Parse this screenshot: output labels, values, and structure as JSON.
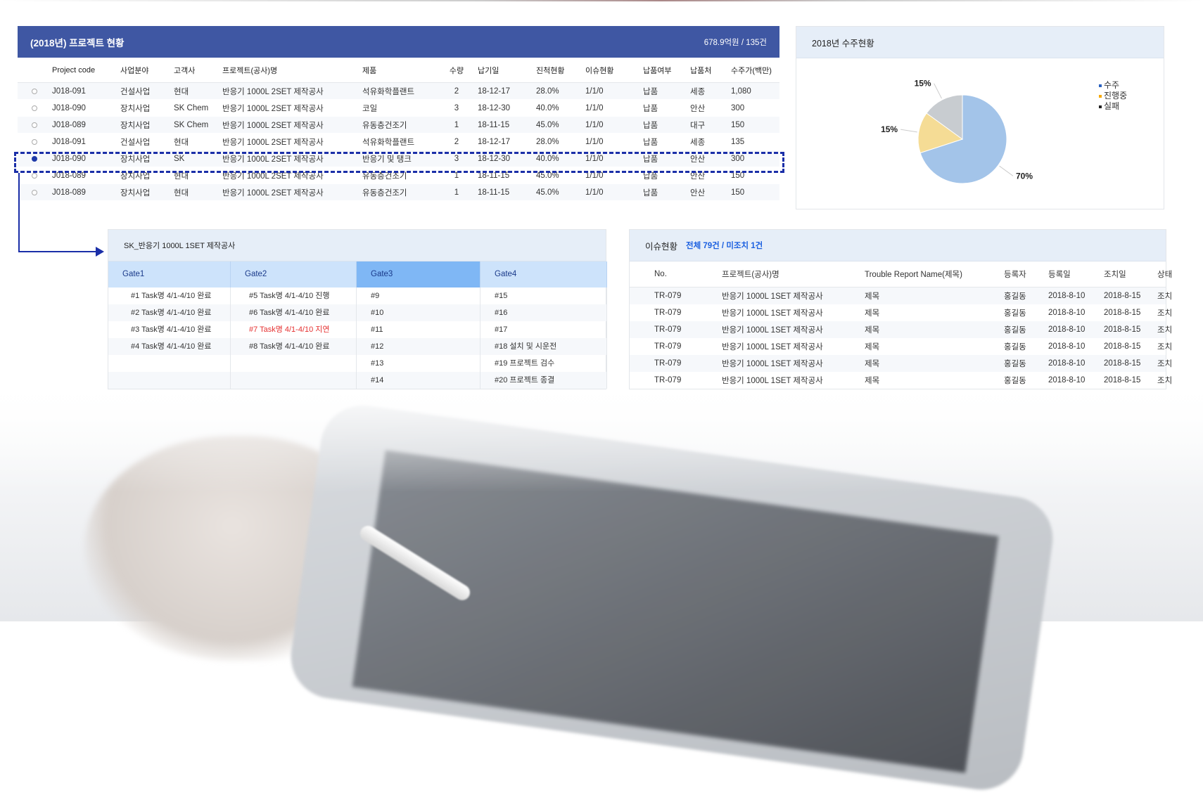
{
  "project_table": {
    "title": "(2018년) 프로젝트 현황",
    "summary": "678.9억원 / 135건",
    "columns": [
      "",
      "Project code",
      "사업분야",
      "고객사",
      "프로젝트(공사)명",
      "제품",
      "수량",
      "납기일",
      "진척현황",
      "이슈현황",
      "납품여부",
      "납품처",
      "수주가(백만)"
    ],
    "rows": [
      {
        "selected": false,
        "cells": [
          "J018-091",
          "건설사업",
          "현대",
          "반응기 1000L 2SET 제작공사",
          "석유화학플랜트",
          "2",
          "18-12-17",
          "28.0%",
          "1/1/0",
          "납품",
          "세종",
          "1,080"
        ]
      },
      {
        "selected": false,
        "cells": [
          "J018-090",
          "장치사업",
          "SK Chem",
          "반응기 1000L 2SET 제작공사",
          "코일",
          "3",
          "18-12-30",
          "40.0%",
          "1/1/0",
          "납품",
          "안산",
          "300"
        ]
      },
      {
        "selected": false,
        "cells": [
          "J018-089",
          "장치사업",
          "SK Chem",
          "반응기 1000L 2SET 제작공사",
          "유동층건조기",
          "1",
          "18-11-15",
          "45.0%",
          "1/1/0",
          "납품",
          "대구",
          "150"
        ]
      },
      {
        "selected": false,
        "cells": [
          "J018-091",
          "건설사업",
          "현대",
          "반응기 1000L 2SET 제작공사",
          "석유화학플랜트",
          "2",
          "18-12-17",
          "28.0%",
          "1/1/0",
          "납품",
          "세종",
          "135"
        ]
      },
      {
        "selected": true,
        "cells": [
          "J018-090",
          "장치사업",
          "SK",
          "반응기 1000L 2SET 제작공사",
          "반응기 및 탱크",
          "3",
          "18-12-30",
          "40.0%",
          "1/1/0",
          "납품",
          "안산",
          "300"
        ]
      },
      {
        "selected": false,
        "cells": [
          "J018-089",
          "장치사업",
          "현대",
          "반응기 1000L 2SET 제작공사",
          "유동층건조기",
          "1",
          "18-11-15",
          "45.0%",
          "1/1/0",
          "납품",
          "안산",
          "150"
        ]
      },
      {
        "selected": false,
        "cells": [
          "J018-089",
          "장치사업",
          "현대",
          "반응기 1000L 2SET 제작공사",
          "유동층건조기",
          "1",
          "18-11-15",
          "45.0%",
          "1/1/0",
          "납품",
          "안산",
          "150"
        ]
      }
    ]
  },
  "pie_panel": {
    "title": "2018년 수주현황"
  },
  "chart_data": {
    "type": "pie",
    "title": "2018년 수주현황",
    "slices": [
      {
        "name": "수주",
        "value": 70,
        "label": "70%",
        "color": "#a3c4e9",
        "legend_color": "#2a62c0"
      },
      {
        "name": "진행중",
        "value": 15,
        "label": "15%",
        "color": "#f5dc95",
        "legend_color": "#f5a800"
      },
      {
        "name": "실패",
        "value": 15,
        "label": "15%",
        "color": "#c8ccd0",
        "legend_color": "#222222"
      }
    ],
    "legend_placement": "right"
  },
  "gate_panel": {
    "title": "SK_반응기 1000L 1SET 제작공사",
    "gates": [
      "Gate1",
      "Gate2",
      "Gate3",
      "Gate4"
    ],
    "active_gate": "Gate3",
    "rows": [
      [
        "#1 Task명 4/1-4/10 완료",
        "#5 Task명 4/1-4/10 진행",
        "#9",
        "#15"
      ],
      [
        "#2 Task명 4/1-4/10 완료",
        "#6 Task명 4/1-4/10 완료",
        "#10",
        "#16"
      ],
      [
        "#3 Task명 4/1-4/10 완료",
        "#7 Task명 4/1-4/10 지연",
        "#11",
        "#17"
      ],
      [
        "#4 Task명 4/1-4/10 완료",
        "#8 Task명 4/1-4/10 완료",
        "#12",
        "#18  설치 및 시운전"
      ],
      [
        "",
        "",
        "#13",
        "#19  프로젝트 검수"
      ],
      [
        "",
        "",
        "#14",
        "#20  프로젝트 종결"
      ]
    ],
    "delayed_color": "#e53030"
  },
  "issue_panel": {
    "title": "이슈현황",
    "summary": "전체 79건 /  미조치 1건",
    "columns": [
      "No.",
      "프로젝트(공사)명",
      "Trouble Report Name(제목)",
      "등록자",
      "등록일",
      "조치일",
      "상태"
    ],
    "rows": [
      [
        "TR-079",
        "반응기 1000L 1SET 제작공사",
        "제목",
        "홍길동",
        "2018-8-10",
        "2018-8-15",
        "조치"
      ],
      [
        "TR-079",
        "반응기 1000L 1SET 제작공사",
        "제목",
        "홍길동",
        "2018-8-10",
        "2018-8-15",
        "조치"
      ],
      [
        "TR-079",
        "반응기 1000L 1SET 제작공사",
        "제목",
        "홍길동",
        "2018-8-10",
        "2018-8-15",
        "조치"
      ],
      [
        "TR-079",
        "반응기 1000L 1SET 제작공사",
        "제목",
        "홍길동",
        "2018-8-10",
        "2018-8-15",
        "조치"
      ],
      [
        "TR-079",
        "반응기 1000L 1SET 제작공사",
        "제목",
        "홍길동",
        "2018-8-10",
        "2018-8-15",
        "조치"
      ],
      [
        "TR-079",
        "반응기 1000L 1SET 제작공사",
        "제목",
        "홍길동",
        "2018-8-10",
        "2018-8-15",
        "조치"
      ]
    ]
  },
  "colors": {
    "header_blue": "#3f57a3",
    "panel_header": "#e6eef8",
    "highlight": "#1b2fa8"
  }
}
